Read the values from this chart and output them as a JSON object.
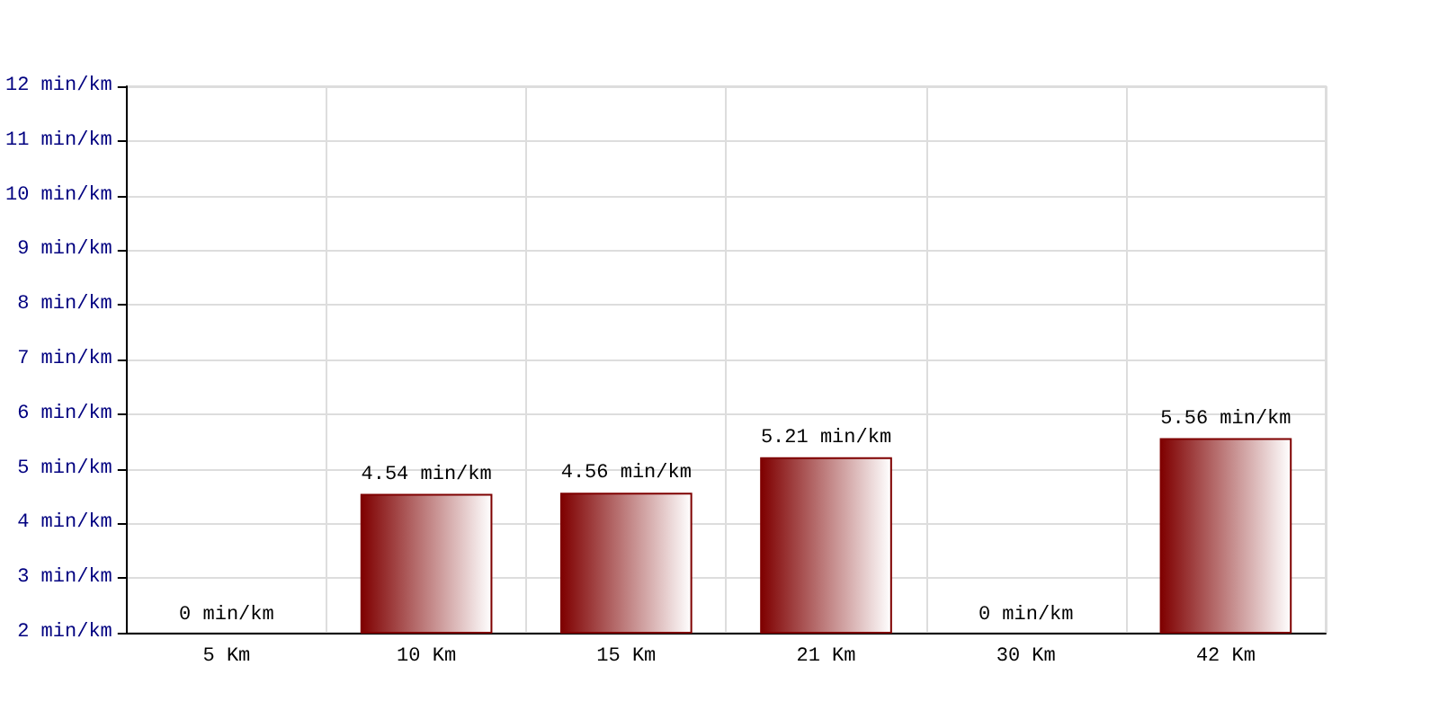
{
  "chart_data": {
    "type": "bar",
    "categories": [
      "5 Km",
      "10 Km",
      "15 Km",
      "21 Km",
      "30 Km",
      "42 Km"
    ],
    "values": [
      null,
      4.54,
      4.56,
      5.21,
      null,
      5.56
    ],
    "value_labels": [
      "0 min/km",
      "4.54 min/km",
      "4.56 min/km",
      "5.21 min/km",
      "0 min/km",
      "5.56 min/km"
    ],
    "color": "#7f0000",
    "ylim": [
      2,
      12
    ],
    "yticks": [
      {
        "value": 2,
        "label": "2 min/km"
      },
      {
        "value": 3,
        "label": "3 min/km"
      },
      {
        "value": 4,
        "label": "4 min/km"
      },
      {
        "value": 5,
        "label": "5 min/km"
      },
      {
        "value": 6,
        "label": "6 min/km"
      },
      {
        "value": 7,
        "label": "7 min/km"
      },
      {
        "value": 8,
        "label": "8 min/km"
      },
      {
        "value": 9,
        "label": "9 min/km"
      },
      {
        "value": 10,
        "label": "10 min/km"
      },
      {
        "value": 11,
        "label": "11 min/km"
      },
      {
        "value": 12,
        "label": "12 min/km"
      }
    ],
    "grid": true
  }
}
